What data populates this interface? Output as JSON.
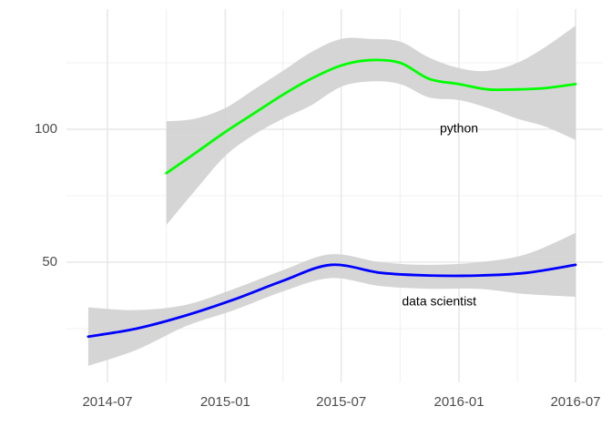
{
  "chart_data": {
    "type": "line",
    "title": "",
    "xlabel": "",
    "ylabel": "",
    "x_axis": {
      "type": "date",
      "range": [
        "2014-06-01",
        "2016-07-31"
      ],
      "ticks": [
        {
          "date": "2014-07-01",
          "label": "2014-07"
        },
        {
          "date": "2015-01-01",
          "label": "2015-01"
        },
        {
          "date": "2015-07-01",
          "label": "2015-07"
        },
        {
          "date": "2016-01-01",
          "label": "2016-01"
        },
        {
          "date": "2016-07-01",
          "label": "2016-07"
        }
      ],
      "minor_ticks": [
        "2014-10-01",
        "2015-04-01",
        "2015-10-01",
        "2016-04-01"
      ]
    },
    "y_axis": {
      "range": [
        14,
        143
      ],
      "ticks": [
        {
          "value": 50,
          "label": "50"
        },
        {
          "value": 100,
          "label": "100"
        }
      ],
      "minor_ticks": [
        25,
        75,
        125
      ]
    },
    "grid": true,
    "legend": "none",
    "confidence_band_color": "#d3d3d3",
    "series": [
      {
        "color": "#00ff00",
        "label": "python",
        "label_position": {
          "date": "2016-01-01",
          "value": 100
        },
        "points": [
          {
            "date": "2014-10-01",
            "y": 83.5,
            "lo": 64,
            "hi": 103
          },
          {
            "date": "2014-11-15",
            "y": 91,
            "lo": 77,
            "hi": 104
          },
          {
            "date": "2015-01-01",
            "y": 99,
            "lo": 90,
            "hi": 108
          },
          {
            "date": "2015-02-15",
            "y": 106,
            "lo": 98,
            "hi": 115
          },
          {
            "date": "2015-04-01",
            "y": 113,
            "lo": 104,
            "hi": 122
          },
          {
            "date": "2015-05-15",
            "y": 119,
            "lo": 109,
            "hi": 129
          },
          {
            "date": "2015-07-01",
            "y": 124,
            "lo": 116,
            "hi": 134
          },
          {
            "date": "2015-08-15",
            "y": 126,
            "lo": 118,
            "hi": 134
          },
          {
            "date": "2015-10-01",
            "y": 125,
            "lo": 117,
            "hi": 133
          },
          {
            "date": "2015-11-15",
            "y": 119,
            "lo": 112,
            "hi": 127
          },
          {
            "date": "2016-01-01",
            "y": 117,
            "lo": 111,
            "hi": 123
          },
          {
            "date": "2016-02-15",
            "y": 115,
            "lo": 108,
            "hi": 122
          },
          {
            "date": "2016-04-01",
            "y": 115,
            "lo": 104,
            "hi": 125
          },
          {
            "date": "2016-05-15",
            "y": 115.5,
            "lo": 101,
            "hi": 131
          },
          {
            "date": "2016-07-01",
            "y": 117,
            "lo": 96,
            "hi": 139
          }
        ]
      },
      {
        "color": "#0000ff",
        "label": "data scientist",
        "label_position": {
          "date": "2015-12-01",
          "value": 35
        },
        "points": [
          {
            "date": "2014-06-01",
            "y": 22,
            "lo": 11,
            "hi": 33
          },
          {
            "date": "2014-08-15",
            "y": 25,
            "lo": 17,
            "hi": 32
          },
          {
            "date": "2014-11-01",
            "y": 30,
            "lo": 26,
            "hi": 34
          },
          {
            "date": "2015-01-15",
            "y": 36,
            "lo": 32,
            "hi": 40
          },
          {
            "date": "2015-04-01",
            "y": 43,
            "lo": 39,
            "hi": 47
          },
          {
            "date": "2015-06-15",
            "y": 49,
            "lo": 44,
            "hi": 53
          },
          {
            "date": "2015-09-01",
            "y": 46,
            "lo": 41,
            "hi": 50
          },
          {
            "date": "2015-11-15",
            "y": 45,
            "lo": 40,
            "hi": 49
          },
          {
            "date": "2016-02-01",
            "y": 45,
            "lo": 40,
            "hi": 50
          },
          {
            "date": "2016-04-15",
            "y": 46,
            "lo": 38,
            "hi": 53
          },
          {
            "date": "2016-07-01",
            "y": 49,
            "lo": 37,
            "hi": 61
          }
        ]
      }
    ]
  }
}
